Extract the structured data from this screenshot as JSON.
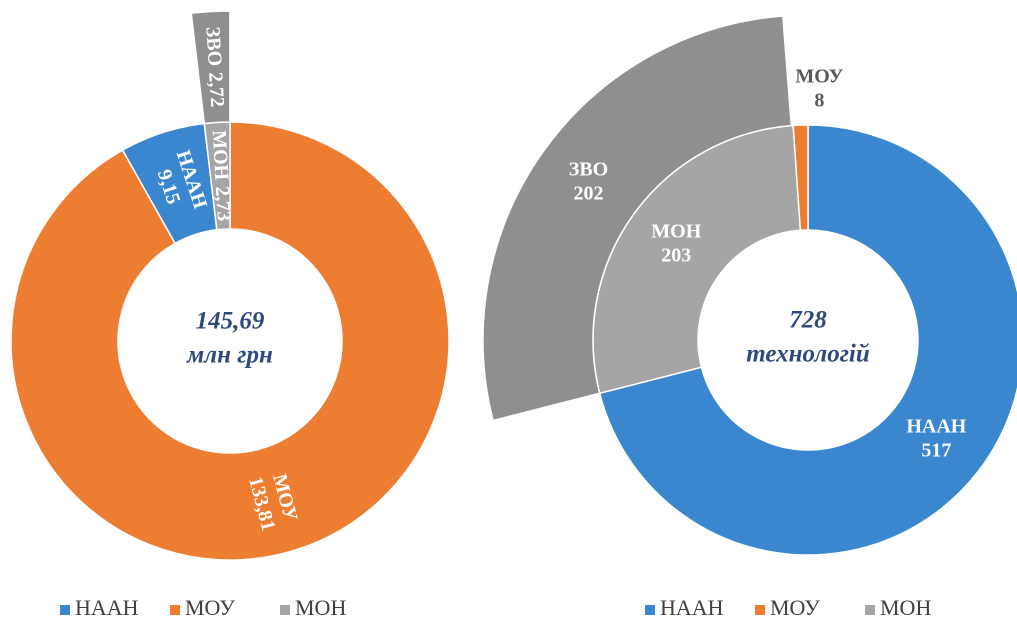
{
  "chart_data": [
    {
      "type": "sunburst",
      "center_title": "145,69",
      "center_subtitle": "млн грн",
      "categories": [
        "МОУ",
        "НААН",
        "МОН"
      ],
      "values": [
        133.81,
        9.15,
        2.73
      ],
      "value_labels": [
        "133,81",
        "9,15",
        "2,73"
      ],
      "colors": [
        "#ed7d31",
        "#3a87cf",
        "#a5a5a5"
      ],
      "outer_ring": {
        "parent": "МОН",
        "categories": [
          "ЗВО"
        ],
        "values": [
          2.72
        ],
        "value_labels": [
          "2,72"
        ],
        "colors": [
          "#8f8f8f"
        ]
      },
      "legend": {
        "position": "bottom",
        "categories": [
          "НААН",
          "МОУ",
          "МОН"
        ],
        "colors": [
          "#3a87cf",
          "#ed7d31",
          "#a5a5a5"
        ]
      }
    },
    {
      "type": "sunburst",
      "center_title": "728",
      "center_subtitle": "технологій",
      "categories": [
        "НААН",
        "МОН",
        "МОУ"
      ],
      "values": [
        517,
        203,
        8
      ],
      "colors": [
        "#3a87cf",
        "#a5a5a5",
        "#ed7d31"
      ],
      "outer_ring": {
        "parent": "МОН",
        "categories": [
          "ЗВО"
        ],
        "values": [
          202
        ],
        "colors": [
          "#8f8f8f"
        ]
      },
      "legend": {
        "position": "bottom",
        "categories": [
          "НААН",
          "МОУ",
          "МОН"
        ],
        "colors": [
          "#3a87cf",
          "#ed7d31",
          "#a5a5a5"
        ]
      }
    }
  ]
}
